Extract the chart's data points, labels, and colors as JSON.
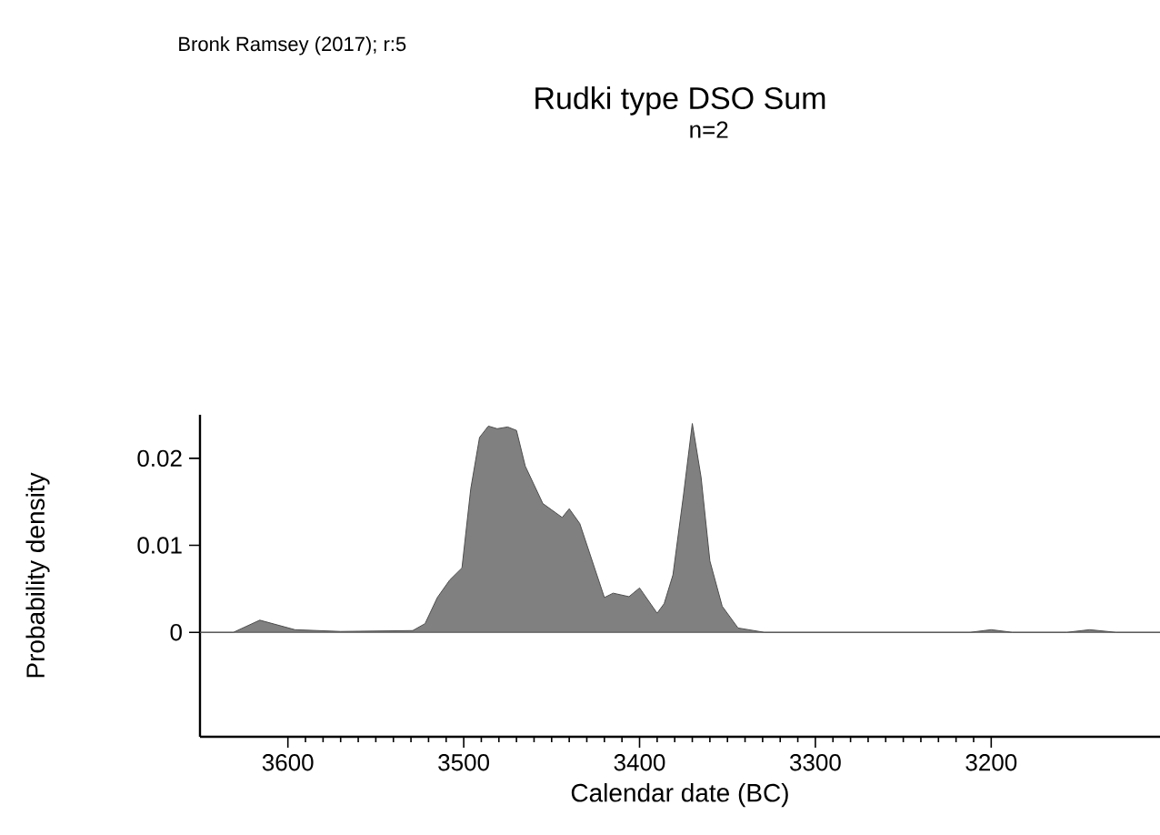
{
  "chart_data": {
    "type": "area",
    "title": "Rudki type DSO Sum",
    "subtitle": "n=2",
    "xlabel": "Calendar date (BC)",
    "ylabel": "Probability density",
    "annotations": [
      "Bronk Ramsey (2017); r:5"
    ],
    "xlim": [
      3650,
      3104
    ],
    "ylim": [
      -0.012,
      0.025
    ],
    "xticks": [
      3600,
      3500,
      3400,
      3300,
      3200
    ],
    "yticks": [
      0,
      0.01,
      0.02
    ],
    "series": [
      {
        "color": "#808080",
        "x": [
          3650,
          3631,
          3616,
          3596,
          3570,
          3529,
          3522,
          3515,
          3508,
          3501,
          3496,
          3491,
          3486,
          3481,
          3475,
          3470,
          3465,
          3455,
          3444,
          3440,
          3434,
          3420,
          3415,
          3406,
          3400,
          3390,
          3386,
          3381,
          3375,
          3370,
          3365,
          3360,
          3353,
          3344,
          3329,
          3212,
          3200,
          3188,
          3157,
          3144,
          3129,
          3104
        ],
        "values": [
          0,
          0,
          0.0014,
          0.0003,
          0.0001,
          0.0002,
          0.001,
          0.004,
          0.006,
          0.0074,
          0.0165,
          0.0224,
          0.0237,
          0.0234,
          0.0236,
          0.0232,
          0.0191,
          0.0148,
          0.0132,
          0.0142,
          0.0125,
          0.004,
          0.0045,
          0.0041,
          0.0051,
          0.0022,
          0.0033,
          0.0066,
          0.0158,
          0.024,
          0.0178,
          0.0082,
          0.003,
          0.0005,
          0,
          0,
          0.0003,
          0,
          0,
          0.0003,
          0,
          0
        ]
      }
    ]
  }
}
